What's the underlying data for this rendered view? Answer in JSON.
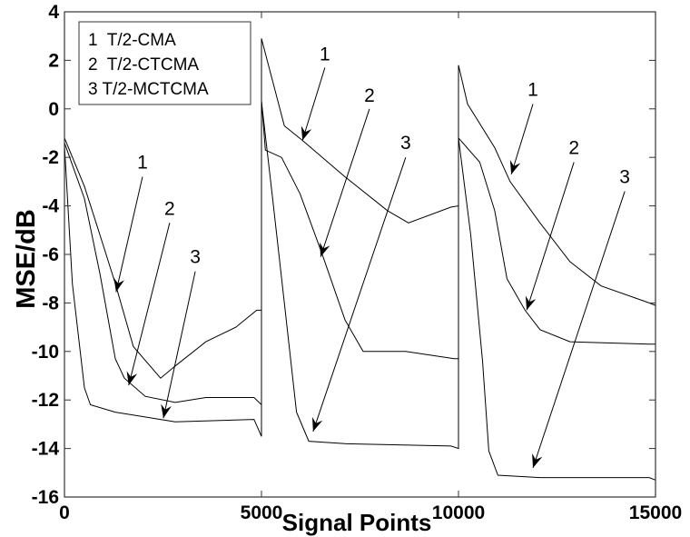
{
  "chart_data": {
    "type": "line",
    "title": "",
    "xlabel": "Signal Points",
    "ylabel": "MSE/dB",
    "xlim": [
      0,
      15000
    ],
    "ylim": [
      -16,
      4
    ],
    "xticks": [
      "0",
      "5000",
      "10000",
      "15000"
    ],
    "yticks": [
      "4",
      "2",
      "0",
      "-2",
      "-4",
      "-6",
      "-8",
      "-10",
      "-12",
      "-14",
      "-16"
    ],
    "grid": false,
    "legend_position": "top-left",
    "legend": [
      "1  T/2-CMA",
      "2  T/2-CTCMA",
      "3 T/2-MCTCMA"
    ],
    "line_color": "#000000",
    "series": [
      {
        "name": "T/2-CMA",
        "x": [
          0,
          507,
          900,
          1290,
          1750,
          2440,
          2810,
          3590,
          4350,
          4880,
          5000,
          5000,
          5580,
          6040,
          7120,
          8200,
          8730,
          9810,
          10000,
          10000,
          10230,
          10920,
          11310,
          12070,
          12830,
          13620,
          14840,
          15000
        ],
        "y": [
          -1.2,
          -3.2,
          -5.2,
          -7.2,
          -9.8,
          -11.1,
          -10.6,
          -9.6,
          -9.0,
          -8.3,
          -8.3,
          2.9,
          -0.7,
          -1.3,
          -2.8,
          -4.2,
          -4.7,
          -4.05,
          -4.0,
          1.8,
          0.2,
          -1.6,
          -3.0,
          -4.7,
          -6.3,
          -7.3,
          -8.0,
          -8.1
        ]
      },
      {
        "name": "T/2-CTCMA",
        "x": [
          0,
          507,
          900,
          1290,
          1520,
          2050,
          2810,
          3590,
          4810,
          5000,
          5000,
          5100,
          5510,
          5980,
          6520,
          7120,
          7580,
          8660,
          9890,
          10000,
          10000,
          10540,
          10920,
          11230,
          11690,
          12070,
          12830,
          14840,
          15000
        ],
        "y": [
          -1.4,
          -3.7,
          -6.8,
          -10.3,
          -11.1,
          -11.85,
          -12.1,
          -11.9,
          -11.9,
          -12.2,
          0.35,
          -1.7,
          -2.0,
          -3.5,
          -5.9,
          -8.7,
          -10.0,
          -10.0,
          -10.3,
          -10.3,
          -1.2,
          -2.2,
          -4.2,
          -7.0,
          -8.3,
          -9.1,
          -9.6,
          -9.7,
          -9.7
        ]
      },
      {
        "name": "T/2-MCTCMA",
        "x": [
          0,
          200,
          507,
          660,
          1290,
          2810,
          4810,
          5000,
          5000,
          5270,
          5580,
          5890,
          6200,
          7120,
          9810,
          10000,
          10000,
          10310,
          10610,
          10770,
          11000,
          12070,
          14840,
          15000
        ],
        "y": [
          -1.5,
          -7.2,
          -11.5,
          -12.2,
          -12.5,
          -12.9,
          -12.8,
          -13.5,
          0.3,
          -3.5,
          -8.0,
          -12.5,
          -13.7,
          -13.8,
          -13.9,
          -14.0,
          -1.2,
          -5.2,
          -10.4,
          -14.1,
          -15.1,
          -15.2,
          -15.2,
          -15.3
        ]
      }
    ],
    "annotations": [
      {
        "text": "1",
        "label": [
          1980,
          -2.2
        ],
        "tail": [
          1980,
          -2.8
        ],
        "tip": [
          1310,
          -7.55
        ]
      },
      {
        "text": "2",
        "label": [
          2670,
          -4.1
        ],
        "tail": [
          2670,
          -4.7
        ],
        "tip": [
          1630,
          -11.4
        ]
      },
      {
        "text": "3",
        "label": [
          3320,
          -6.1
        ],
        "tail": [
          3320,
          -6.7
        ],
        "tip": [
          2510,
          -12.75
        ]
      },
      {
        "text": "1",
        "label": [
          6610,
          2.25
        ],
        "tail": [
          6610,
          1.7
        ],
        "tip": [
          6040,
          -1.3
        ]
      },
      {
        "text": "2",
        "label": [
          7740,
          0.55
        ],
        "tail": [
          7740,
          0.0
        ],
        "tip": [
          6500,
          -6.1
        ]
      },
      {
        "text": "3",
        "label": [
          8660,
          -1.4
        ],
        "tail": [
          8660,
          -2.0
        ],
        "tip": [
          6310,
          -13.3
        ]
      },
      {
        "text": "1",
        "label": [
          11890,
          0.8
        ],
        "tail": [
          11890,
          0.2
        ],
        "tip": [
          11340,
          -2.7
        ]
      },
      {
        "text": "2",
        "label": [
          12930,
          -1.6
        ],
        "tail": [
          12930,
          -2.2
        ],
        "tip": [
          11730,
          -8.3
        ]
      },
      {
        "text": "3",
        "label": [
          14220,
          -2.8
        ],
        "tail": [
          14220,
          -3.4
        ],
        "tip": [
          11890,
          -14.8
        ]
      }
    ]
  }
}
